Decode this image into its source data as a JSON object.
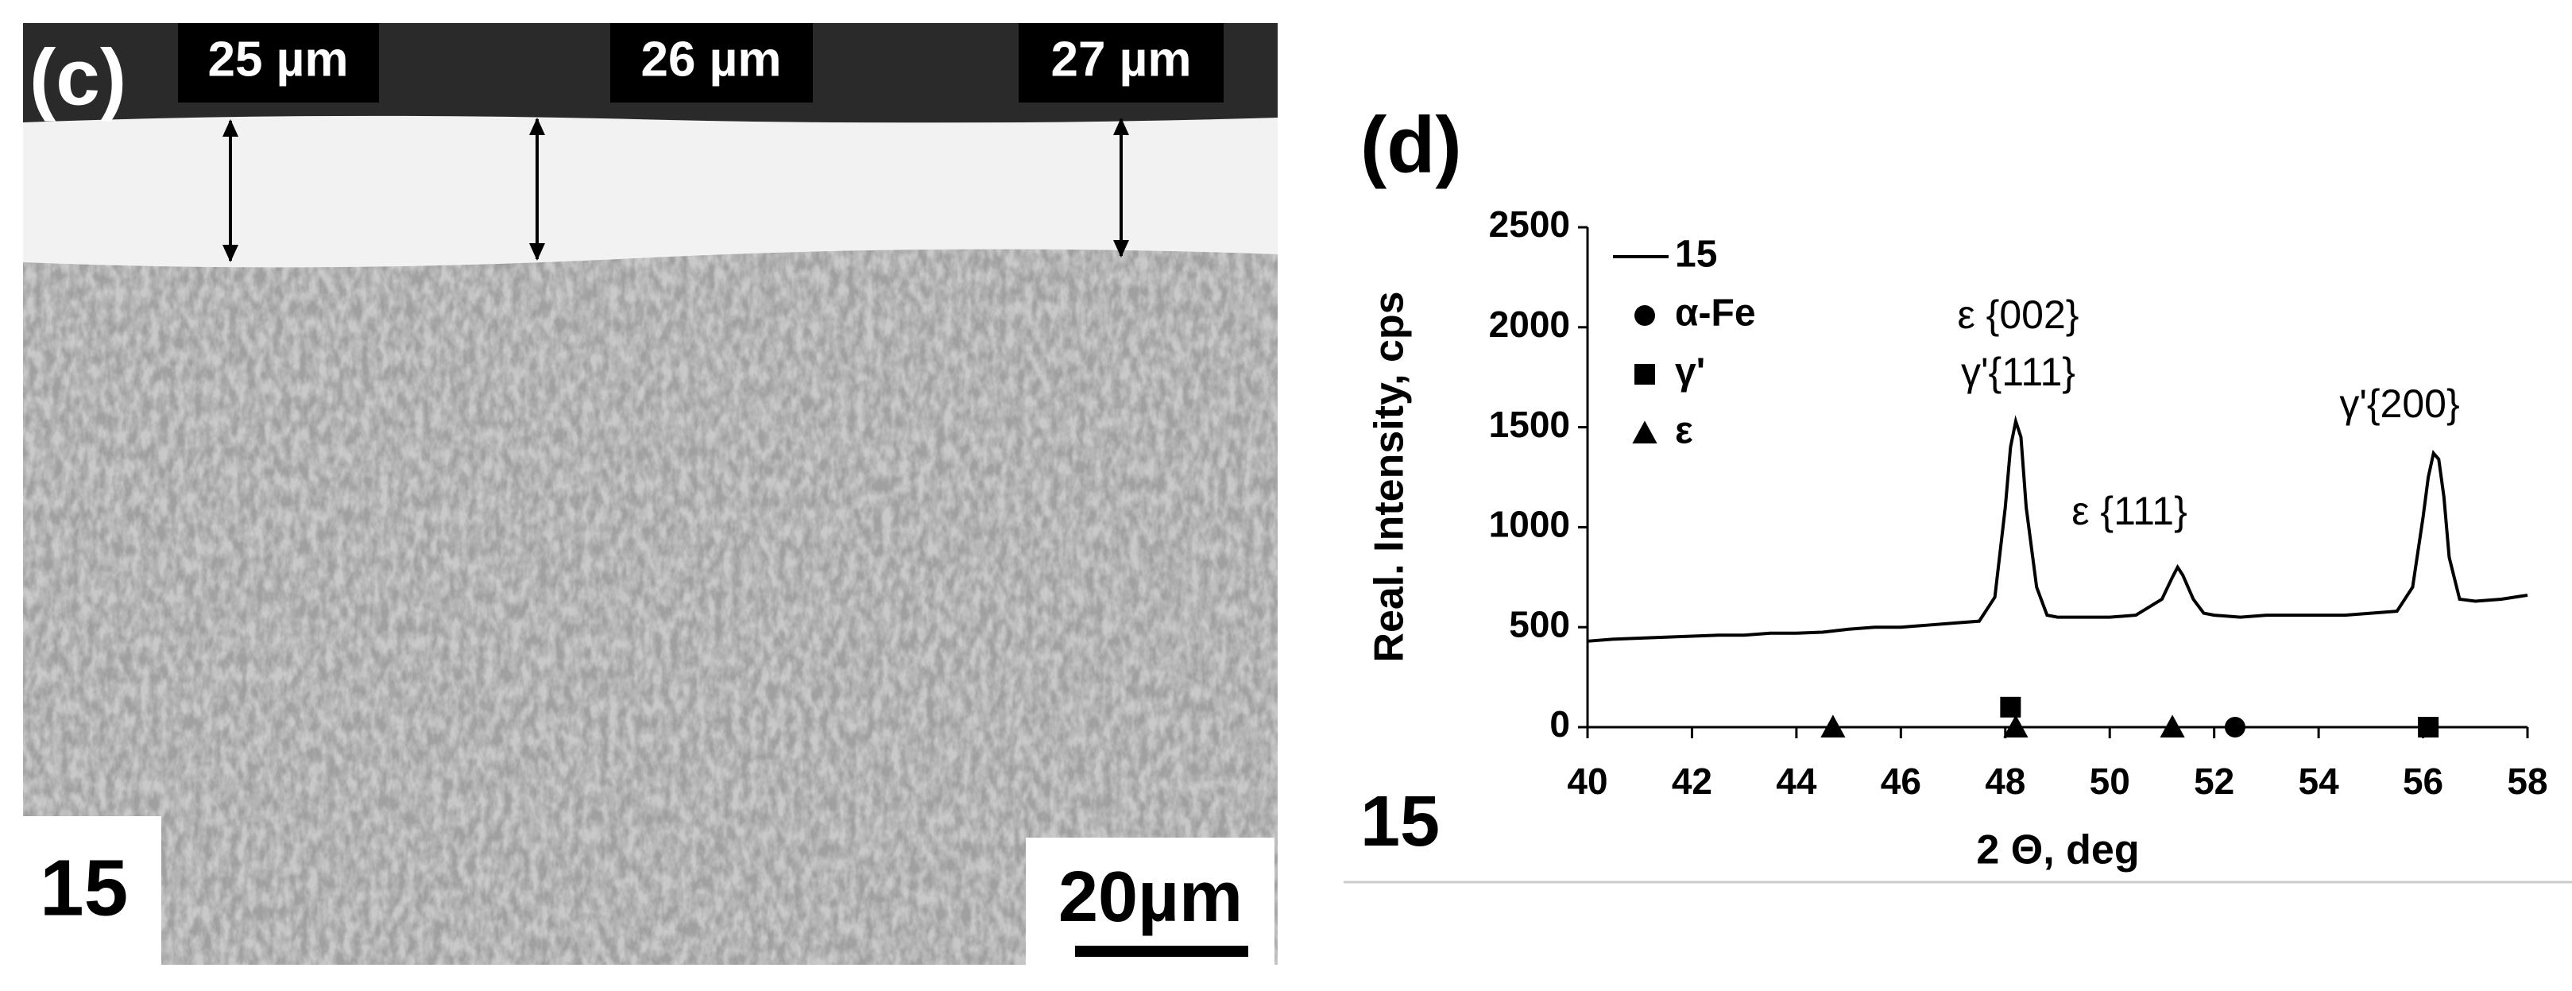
{
  "micrograph": {
    "panel_label": "(c)",
    "thickness_labels": [
      "25 µm",
      "26 µm",
      "27 µm"
    ],
    "sample_label": "15",
    "scale_bar": "20µm"
  },
  "chart_data": {
    "type": "line",
    "panel_label": "(d)",
    "sample_label": "15",
    "x_label": "2 Θ, deg",
    "y_label": "Real. Intensity, cps",
    "xlim": [
      40,
      58
    ],
    "xticks": [
      40,
      42,
      44,
      46,
      48,
      50,
      52,
      54,
      56,
      58
    ],
    "ylim": [
      0,
      2500
    ],
    "yticks": [
      0,
      500,
      1000,
      1500,
      2000,
      2500
    ],
    "grid": false,
    "legend": "top-left",
    "annotations": [
      "ε {002}",
      "γ'{111}",
      "ε {111}",
      "γ'{200}"
    ],
    "series": [
      {
        "name": "15",
        "color": "#000000",
        "marker": "line",
        "x": [
          40,
          40.5,
          41,
          41.5,
          42,
          42.5,
          43,
          43.5,
          44,
          44.5,
          45,
          45.5,
          46,
          46.5,
          47,
          47.5,
          47.8,
          48.0,
          48.1,
          48.2,
          48.3,
          48.4,
          48.6,
          48.8,
          49,
          49.5,
          50,
          50.5,
          51,
          51.2,
          51.3,
          51.4,
          51.6,
          51.8,
          52,
          52.5,
          53,
          53.5,
          54,
          54.5,
          55,
          55.5,
          55.8,
          56,
          56.1,
          56.2,
          56.3,
          56.4,
          56.5,
          56.7,
          57,
          57.5,
          58
        ],
        "values": [
          430,
          440,
          445,
          450,
          455,
          460,
          460,
          470,
          470,
          475,
          490,
          500,
          500,
          510,
          520,
          530,
          650,
          1100,
          1400,
          1530,
          1450,
          1100,
          700,
          560,
          550,
          550,
          550,
          560,
          640,
          750,
          800,
          760,
          640,
          570,
          560,
          550,
          560,
          560,
          560,
          560,
          570,
          580,
          700,
          1050,
          1250,
          1370,
          1340,
          1150,
          850,
          640,
          630,
          640,
          660
        ]
      },
      {
        "name": "α-Fe",
        "color": "#000000",
        "marker": "circle",
        "x": [
          52.4
        ],
        "values": [
          0
        ]
      },
      {
        "name": "γ'",
        "color": "#000000",
        "marker": "square",
        "x": [
          48.1,
          56.1
        ],
        "values": [
          100,
          0
        ]
      },
      {
        "name": "ε",
        "color": "#000000",
        "marker": "triangle",
        "x": [
          44.7,
          48.2,
          51.2
        ],
        "values": [
          0,
          0,
          0
        ]
      }
    ]
  }
}
